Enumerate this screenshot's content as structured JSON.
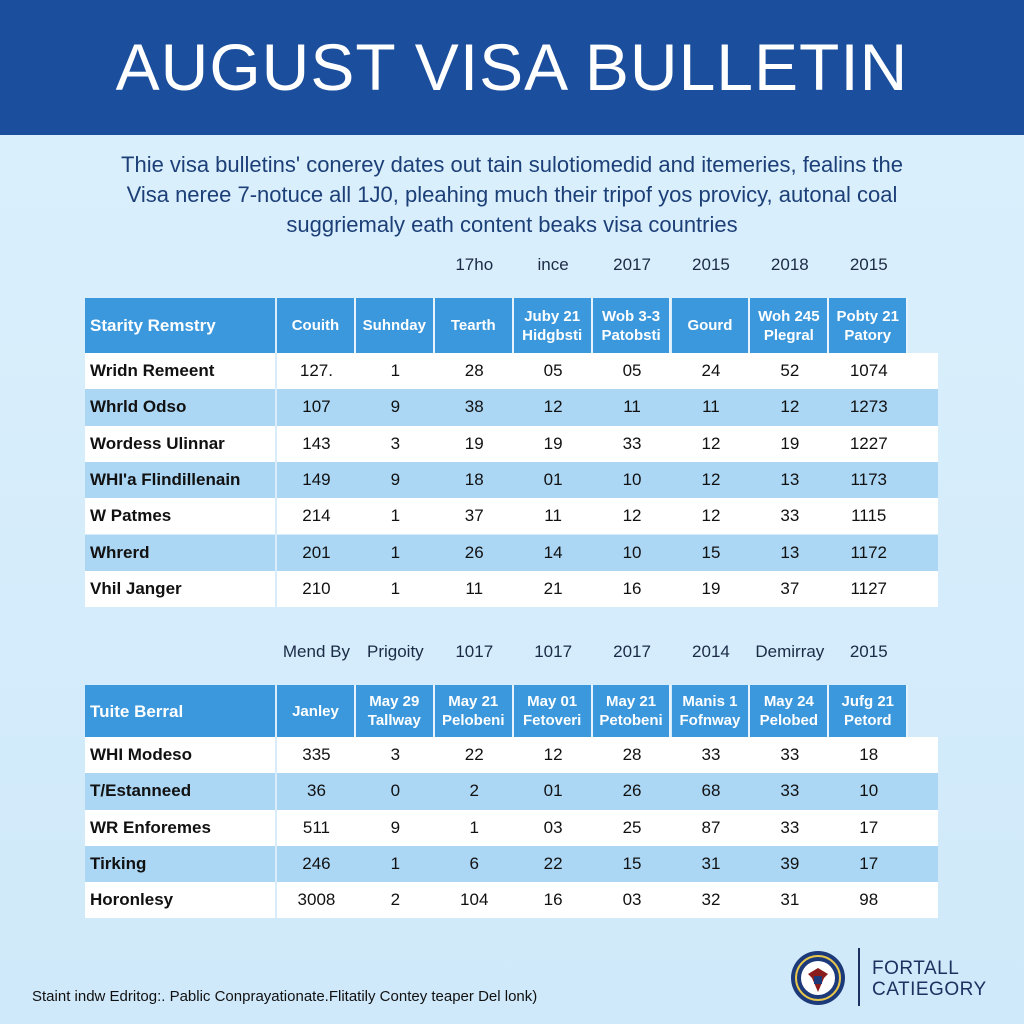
{
  "header": {
    "title": "AUGUST VISA BULLETIN"
  },
  "intro": [
    "Thie visa bulletins' conerey dates out tain sulotiomedid and itemeries, fealins the",
    "Visa neree 7-notuce all 1J0, pleahing much their tripof yos provicy, autonal coal",
    "suggriemaly eath content beaks visa countries"
  ],
  "tables": [
    {
      "above": [
        null,
        null,
        null,
        "17ho",
        "ince",
        "2017",
        "2015",
        "2018",
        "2015"
      ],
      "columns": [
        "Starity Remstry",
        "Couith",
        "Suhnday",
        "Tearth",
        "Juby 21\nHidgbsti",
        "Wob 3-3\nPatobsti",
        "Gourd",
        "Woh 245\nPlegral",
        "Pobty 21\nPatory"
      ],
      "rows": [
        [
          "Wridn Remeent",
          "127.",
          "1",
          "28",
          "05",
          "05",
          "24",
          "52",
          "1074"
        ],
        [
          "Whrld Odso",
          "107",
          "9",
          "38",
          "12",
          "11",
          "11",
          "12",
          "1273"
        ],
        [
          "Wordess Ulinnar",
          "143",
          "3",
          "19",
          "19",
          "33",
          "12",
          "19",
          "1227"
        ],
        [
          "WHI'a Flindillenain",
          "149",
          "9",
          "18",
          "01",
          "10",
          "12",
          "13",
          "1173"
        ],
        [
          "W Patmes",
          "214",
          "1",
          "37",
          "11",
          "12",
          "12",
          "33",
          "1115"
        ],
        [
          "Whrerd",
          "201",
          "1",
          "26",
          "14",
          "10",
          "15",
          "13",
          "1172"
        ],
        [
          "Vhil Janger",
          "210",
          "1",
          "11",
          "21",
          "16",
          "19",
          "37",
          "1127"
        ]
      ]
    },
    {
      "above": [
        null,
        "Mend By",
        "Prigoity",
        "1017",
        "1017",
        "2017",
        "2014",
        "Demirray",
        "2015"
      ],
      "columns": [
        "Tuite Berral",
        "Janley",
        "May 29\nTallway",
        "May 21\nPelobeni",
        "May 01\nFetoveri",
        "May 21\nPetobeni",
        "Manis 1\nFofnway",
        "May 24\nPelobed",
        "Jufg 21\nPetord"
      ],
      "rows": [
        [
          "WHI Modeso",
          "335",
          "3",
          "22",
          "12",
          "28",
          "33",
          "33",
          "18"
        ],
        [
          "T/Estanneed",
          "36",
          "0",
          "2",
          "01",
          "26",
          "68",
          "33",
          "10"
        ],
        [
          "WR Enforemes",
          "511",
          "9",
          "1",
          "03",
          "25",
          "87",
          "33",
          "17"
        ],
        [
          "Tirking",
          "246",
          "1",
          "6",
          "22",
          "15",
          "31",
          "39",
          "17"
        ],
        [
          "Horonlesy",
          "3008",
          "2",
          "104",
          "16",
          "03",
          "32",
          "31",
          "98"
        ]
      ]
    }
  ],
  "footer": {
    "note": "Staint indw Edritog:. Pablic Conprayationate.Flitatily Contey teaper Del lonk)",
    "logo": "FORTALL\nCATIEGORY"
  }
}
